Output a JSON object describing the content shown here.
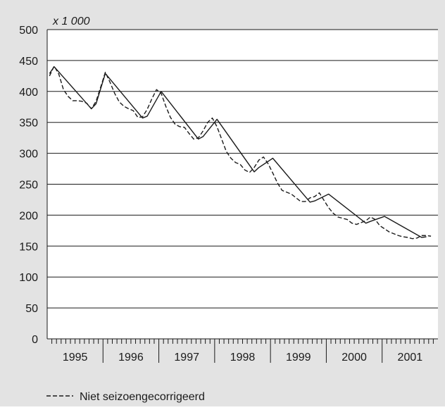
{
  "chart_data": {
    "type": "line",
    "title": "",
    "unit_label": "x 1 000",
    "xlabel": "",
    "ylabel": "",
    "ylim": [
      0,
      500
    ],
    "yticks": [
      "0",
      "50",
      "100",
      "150",
      "200",
      "250",
      "300",
      "350",
      "400",
      "450",
      "500"
    ],
    "x_categories": [
      "1995",
      "1996",
      "1997",
      "1998",
      "1999",
      "2000",
      "2001"
    ],
    "x_range_months": "1995-01 .. 2001-12",
    "grid": "horizontal",
    "legend_position": "bottom-left",
    "background": "#e3e3e3",
    "plot_background": "#ffffff",
    "series": [
      {
        "name": "",
        "style": "solid",
        "color": "#1a1a1a",
        "points": [
          [
            "1995-01",
            429
          ],
          [
            "1995-02",
            440
          ],
          [
            "1995-10",
            372
          ],
          [
            "1995-11",
            380
          ],
          [
            "1996-01",
            429
          ],
          [
            "1996-09",
            357
          ],
          [
            "1996-10",
            360
          ],
          [
            "1997-01",
            400
          ],
          [
            "1997-09",
            323
          ],
          [
            "1997-10",
            327
          ],
          [
            "1998-01",
            355
          ],
          [
            "1998-09",
            270
          ],
          [
            "1998-10",
            277
          ],
          [
            "1999-01",
            292
          ],
          [
            "1999-09",
            221
          ],
          [
            "1999-10",
            223
          ],
          [
            "2000-01",
            234
          ],
          [
            "2000-09",
            187
          ],
          [
            "2000-10",
            190
          ],
          [
            "2001-01",
            198
          ],
          [
            "2001-09",
            164
          ],
          [
            "2001-10",
            165
          ]
        ]
      },
      {
        "name": "Niet seizoengecorrigeerd",
        "style": "dashed",
        "color": "#1a1a1a",
        "points": [
          [
            "1995-01",
            425
          ],
          [
            "1995-02",
            441
          ],
          [
            "1995-03",
            428
          ],
          [
            "1995-04",
            403
          ],
          [
            "1995-05",
            392
          ],
          [
            "1995-06",
            385
          ],
          [
            "1995-07",
            385
          ],
          [
            "1995-08",
            384
          ],
          [
            "1995-09",
            381
          ],
          [
            "1995-10",
            372
          ],
          [
            "1995-11",
            384
          ],
          [
            "1995-12",
            407
          ],
          [
            "1996-01",
            431
          ],
          [
            "1996-02",
            415
          ],
          [
            "1996-03",
            397
          ],
          [
            "1996-04",
            383
          ],
          [
            "1996-05",
            376
          ],
          [
            "1996-06",
            372
          ],
          [
            "1996-07",
            369
          ],
          [
            "1996-08",
            358
          ],
          [
            "1996-09",
            359
          ],
          [
            "1996-10",
            371
          ],
          [
            "1996-11",
            388
          ],
          [
            "1996-12",
            403
          ],
          [
            "1997-01",
            397
          ],
          [
            "1997-02",
            376
          ],
          [
            "1997-03",
            358
          ],
          [
            "1997-04",
            347
          ],
          [
            "1997-05",
            343
          ],
          [
            "1997-06",
            342
          ],
          [
            "1997-07",
            332
          ],
          [
            "1997-08",
            323
          ],
          [
            "1997-09",
            325
          ],
          [
            "1997-10",
            336
          ],
          [
            "1997-11",
            350
          ],
          [
            "1997-12",
            357
          ],
          [
            "1998-01",
            343
          ],
          [
            "1998-02",
            323
          ],
          [
            "1998-03",
            303
          ],
          [
            "1998-04",
            292
          ],
          [
            "1998-05",
            285
          ],
          [
            "1998-06",
            282
          ],
          [
            "1998-07",
            273
          ],
          [
            "1998-08",
            269
          ],
          [
            "1998-09",
            277
          ],
          [
            "1998-10",
            289
          ],
          [
            "1998-11",
            294
          ],
          [
            "1998-12",
            283
          ],
          [
            "1999-01",
            268
          ],
          [
            "1999-02",
            252
          ],
          [
            "1999-03",
            240
          ],
          [
            "1999-04",
            237
          ],
          [
            "1999-05",
            234
          ],
          [
            "1999-06",
            228
          ],
          [
            "1999-07",
            222
          ],
          [
            "1999-08",
            222
          ],
          [
            "1999-09",
            228
          ],
          [
            "1999-10",
            230
          ],
          [
            "1999-11",
            236
          ],
          [
            "1999-12",
            224
          ],
          [
            "2000-01",
            212
          ],
          [
            "2000-02",
            203
          ],
          [
            "2000-03",
            197
          ],
          [
            "2000-04",
            195
          ],
          [
            "2000-05",
            193
          ],
          [
            "2000-06",
            187
          ],
          [
            "2000-07",
            185
          ],
          [
            "2000-08",
            188
          ],
          [
            "2000-09",
            191
          ],
          [
            "2000-10",
            197
          ],
          [
            "2000-11",
            193
          ],
          [
            "2000-12",
            183
          ],
          [
            "2001-01",
            178
          ],
          [
            "2001-02",
            173
          ],
          [
            "2001-03",
            170
          ],
          [
            "2001-04",
            167
          ],
          [
            "2001-05",
            165
          ],
          [
            "2001-06",
            164
          ],
          [
            "2001-07",
            162
          ],
          [
            "2001-08",
            163
          ],
          [
            "2001-09",
            167
          ],
          [
            "2001-10",
            167
          ],
          [
            "2001-11",
            166
          ]
        ]
      }
    ],
    "legend": [
      {
        "label": "Niet seizoengecorrigeerd",
        "style": "dashed"
      }
    ]
  }
}
